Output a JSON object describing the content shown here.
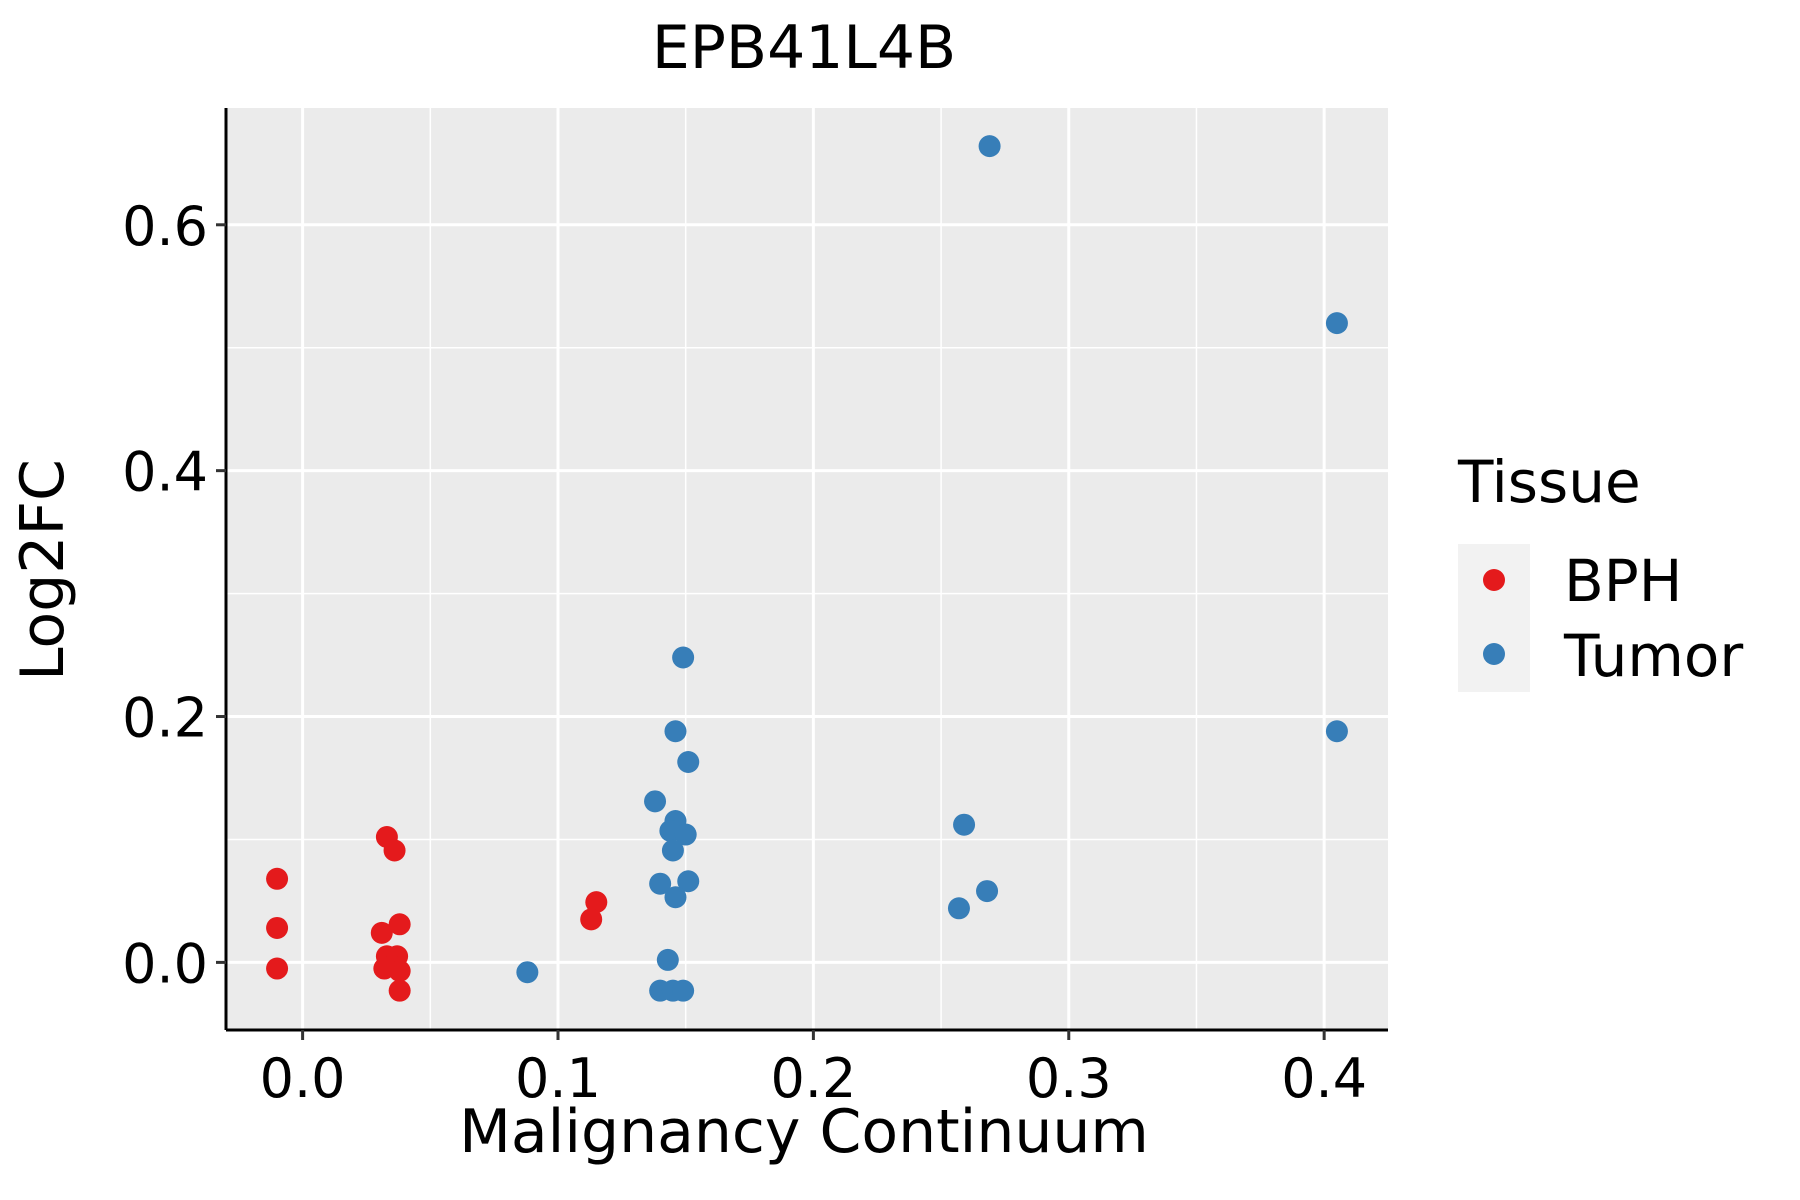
{
  "chart_data": {
    "type": "scatter",
    "title": "EPB41L4B",
    "xlabel": "Malignancy Continuum",
    "ylabel": "Log2FC",
    "xlim": [
      -0.03,
      0.425
    ],
    "ylim": [
      -0.055,
      0.695
    ],
    "xticks": [
      0.0,
      0.1,
      0.2,
      0.3,
      0.4
    ],
    "xtick_labels": [
      "0.0",
      "0.1",
      "0.2",
      "0.3",
      "0.4"
    ],
    "yticks": [
      0.0,
      0.2,
      0.4,
      0.6
    ],
    "ytick_labels": [
      "0.0",
      "0.2",
      "0.4",
      "0.6"
    ],
    "grid": true,
    "legend": {
      "title": "Tissue",
      "position": "right",
      "entries": [
        {
          "name": "BPH",
          "color": "#E41A1C"
        },
        {
          "name": "Tumor",
          "color": "#377EB8"
        }
      ]
    },
    "series": [
      {
        "name": "BPH",
        "color": "#E41A1C",
        "points": [
          {
            "x": -0.01,
            "y": 0.068
          },
          {
            "x": -0.01,
            "y": 0.028
          },
          {
            "x": -0.01,
            "y": -0.005
          },
          {
            "x": 0.033,
            "y": 0.102
          },
          {
            "x": 0.036,
            "y": 0.091
          },
          {
            "x": 0.031,
            "y": 0.024
          },
          {
            "x": 0.038,
            "y": 0.031
          },
          {
            "x": 0.033,
            "y": 0.005
          },
          {
            "x": 0.037,
            "y": 0.005
          },
          {
            "x": 0.032,
            "y": -0.005
          },
          {
            "x": 0.035,
            "y": -0.003
          },
          {
            "x": 0.038,
            "y": -0.007
          },
          {
            "x": 0.038,
            "y": -0.023
          },
          {
            "x": 0.115,
            "y": 0.049
          },
          {
            "x": 0.113,
            "y": 0.035
          }
        ]
      },
      {
        "name": "Tumor",
        "color": "#377EB8",
        "points": [
          {
            "x": 0.088,
            "y": -0.008
          },
          {
            "x": 0.143,
            "y": 0.002
          },
          {
            "x": 0.14,
            "y": -0.023
          },
          {
            "x": 0.145,
            "y": -0.023
          },
          {
            "x": 0.149,
            "y": -0.023
          },
          {
            "x": 0.149,
            "y": 0.248
          },
          {
            "x": 0.146,
            "y": 0.188
          },
          {
            "x": 0.151,
            "y": 0.163
          },
          {
            "x": 0.138,
            "y": 0.131
          },
          {
            "x": 0.146,
            "y": 0.115
          },
          {
            "x": 0.144,
            "y": 0.107
          },
          {
            "x": 0.15,
            "y": 0.104
          },
          {
            "x": 0.145,
            "y": 0.091
          },
          {
            "x": 0.14,
            "y": 0.064
          },
          {
            "x": 0.151,
            "y": 0.066
          },
          {
            "x": 0.146,
            "y": 0.053
          },
          {
            "x": 0.259,
            "y": 0.112
          },
          {
            "x": 0.268,
            "y": 0.058
          },
          {
            "x": 0.257,
            "y": 0.044
          },
          {
            "x": 0.269,
            "y": 0.664
          },
          {
            "x": 0.405,
            "y": 0.52
          },
          {
            "x": 0.405,
            "y": 0.188
          }
        ]
      }
    ]
  }
}
